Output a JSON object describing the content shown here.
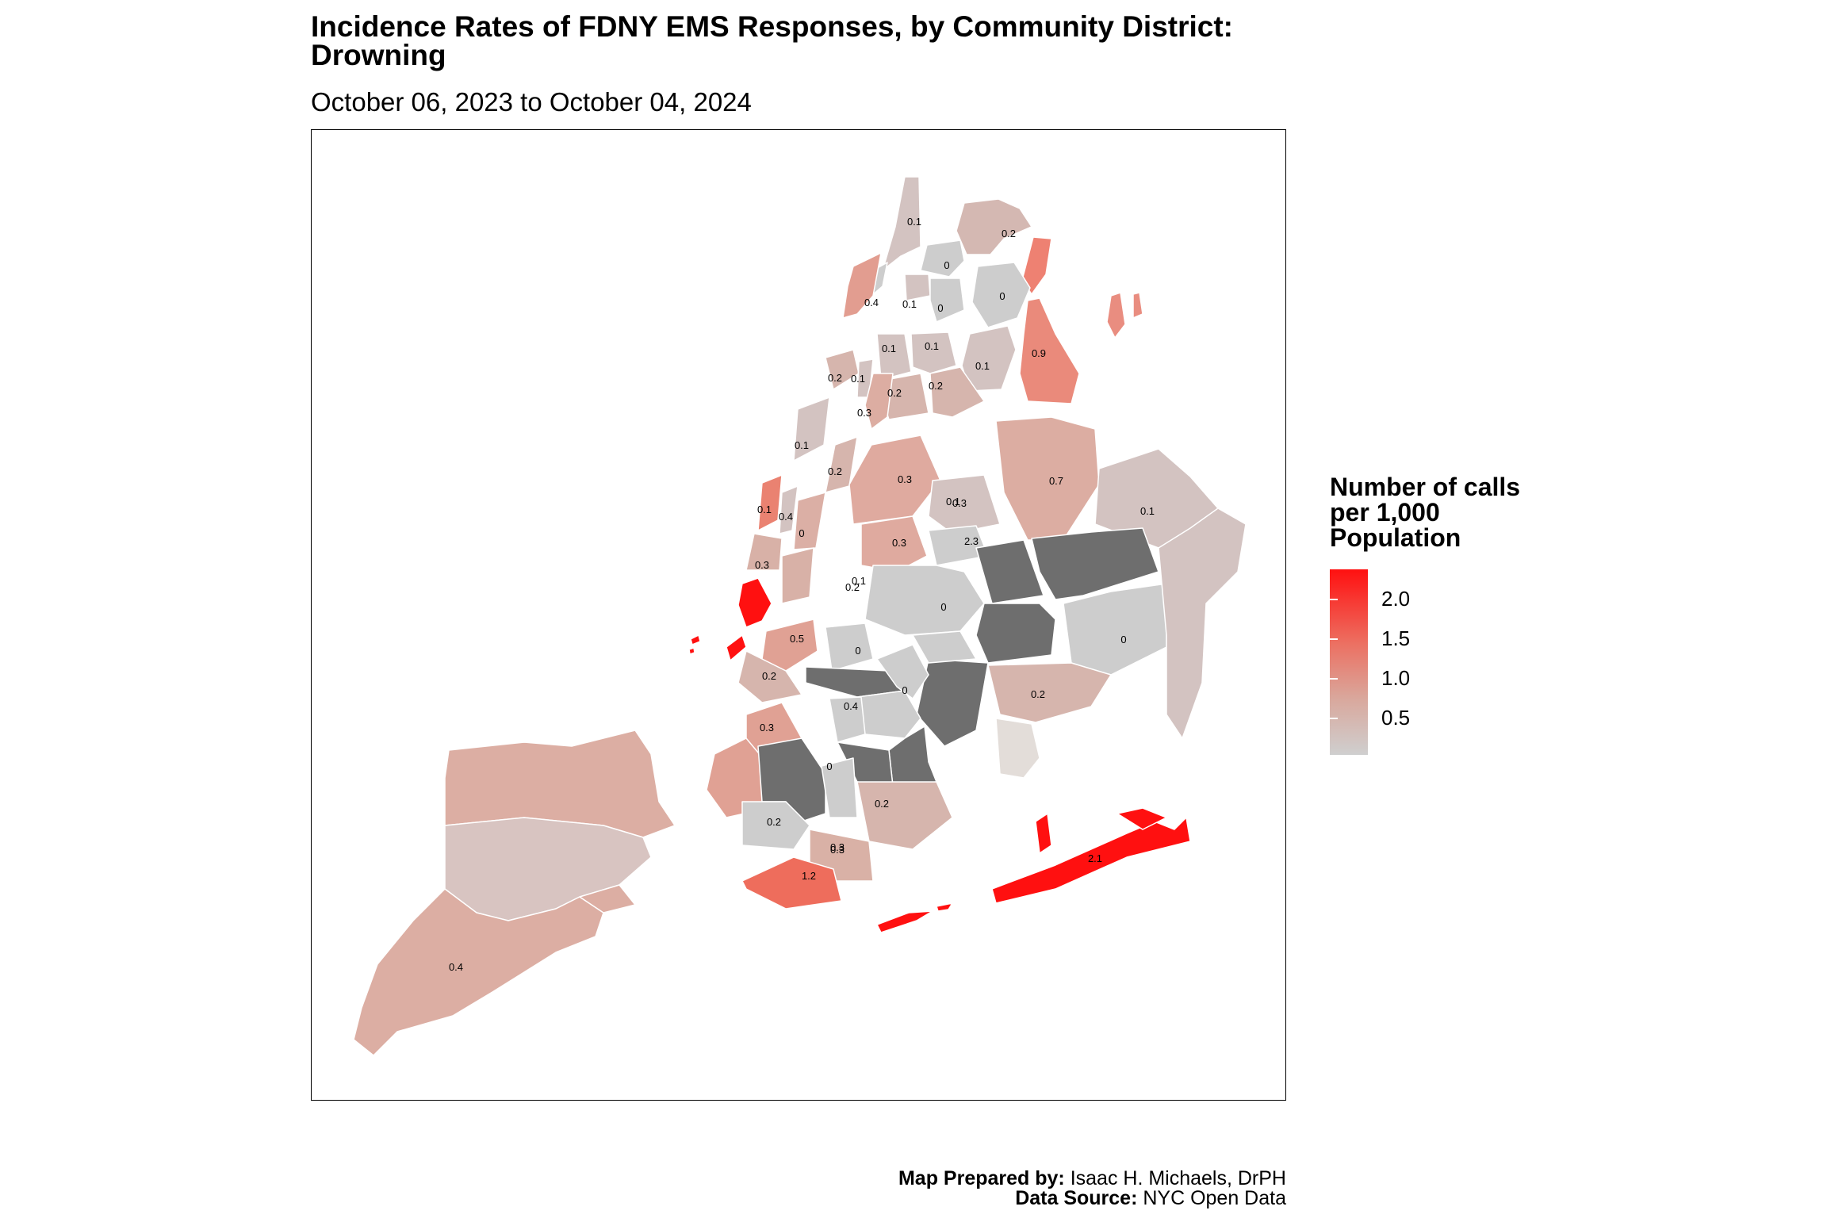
{
  "title_line1": "Incidence Rates of FDNY EMS Responses, by Community District:",
  "title_line2": "Drowning",
  "subtitle": "October 06, 2023 to October 04, 2024",
  "legend": {
    "title_line1": "Number of calls",
    "title_line2": "per 1,000",
    "title_line3": "Population",
    "ticks": [
      "2.0",
      "1.5",
      "1.0",
      "0.5"
    ],
    "color_low": "#cfcfcf",
    "color_high": "#ff1010",
    "no_data_color": "#6e6e6e"
  },
  "caption": {
    "prepared_label": "Map Prepared by:",
    "prepared_value": " Isaac H. Michaels, DrPH",
    "source_label": "Data Source:",
    "source_value": " NYC Open Data"
  },
  "district_labels": [
    "0.1",
    "0.2",
    "0",
    "0.4",
    "0.1",
    "0",
    "0",
    "0.1",
    "0.1",
    "0.9",
    "0.1",
    "0.2",
    "0.1",
    "0.2",
    "0.2",
    "0.3",
    "0.1",
    "0.2",
    "0.3",
    "0.7",
    "0.1",
    "0.4",
    "0.1",
    "0.3",
    "0",
    "0.3",
    "0.3",
    "2.3",
    "0.2",
    "0",
    "0.1",
    "0.5",
    "0",
    "0",
    "0.2",
    "0.2",
    "0",
    "0.4",
    "0.3",
    "0.3",
    "0",
    "0.2",
    "0.2",
    "0.1",
    "2.1",
    "0.3",
    "1.2",
    "0.4"
  ]
}
